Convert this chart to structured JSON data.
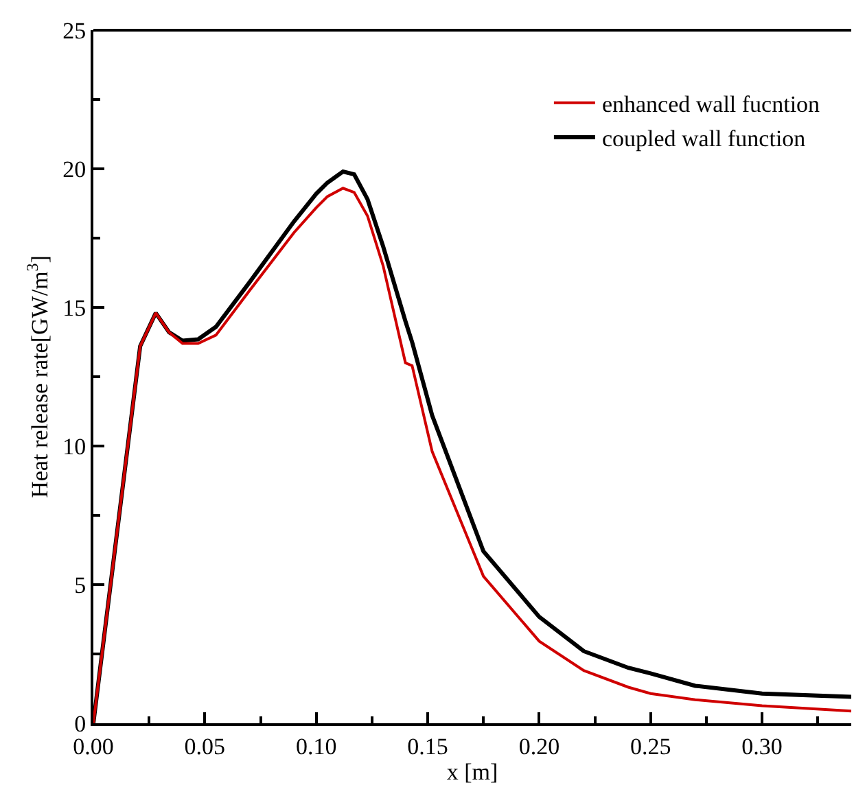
{
  "chart_data": {
    "type": "line",
    "xlabel": "x [m]",
    "ylabel": "Heat release rate[GW/m$^{3}$]",
    "x": [
      0,
      0.021,
      0.028,
      0.034,
      0.04,
      0.047,
      0.055,
      0.07,
      0.09,
      0.1,
      0.105,
      0.112,
      0.117,
      0.123,
      0.13,
      0.14,
      0.143,
      0.152,
      0.175,
      0.2,
      0.22,
      0.24,
      0.25,
      0.27,
      0.3,
      0.34
    ],
    "series": [
      {
        "name": "enhanced wall fucntion",
        "color": "#d00000",
        "values": [
          0,
          13.6,
          14.8,
          14.1,
          13.7,
          13.7,
          14.0,
          15.6,
          17.7,
          18.6,
          19.0,
          19.3,
          19.15,
          18.3,
          16.5,
          13.0,
          12.9,
          9.8,
          5.3,
          2.96,
          1.9,
          1.3,
          1.07,
          0.85,
          0.63,
          0.44
        ]
      },
      {
        "name": "coupled wall function",
        "color": "#000000",
        "values": [
          0,
          13.6,
          14.8,
          14.1,
          13.8,
          13.85,
          14.3,
          15.9,
          18.1,
          19.1,
          19.5,
          19.9,
          19.8,
          18.9,
          17.2,
          14.5,
          13.75,
          11.1,
          6.2,
          3.84,
          2.6,
          2.0,
          1.8,
          1.35,
          1.07,
          0.95
        ]
      }
    ],
    "xlim": [
      0,
      0.34
    ],
    "ylim": [
      0,
      25
    ],
    "xticks": [
      {
        "value": 0,
        "label": "0.00"
      },
      {
        "value": 0.05,
        "label": "0.05"
      },
      {
        "value": 0.1,
        "label": "0.10"
      },
      {
        "value": 0.15,
        "label": "0.15"
      },
      {
        "value": 0.2,
        "label": "0.20"
      },
      {
        "value": 0.25,
        "label": "0.25"
      },
      {
        "value": 0.3,
        "label": "0.30"
      }
    ],
    "yticks": [
      0,
      5,
      10,
      15,
      20,
      25
    ],
    "legend": "top right",
    "grid": false,
    "line_style": "solid",
    "marker": "none"
  }
}
